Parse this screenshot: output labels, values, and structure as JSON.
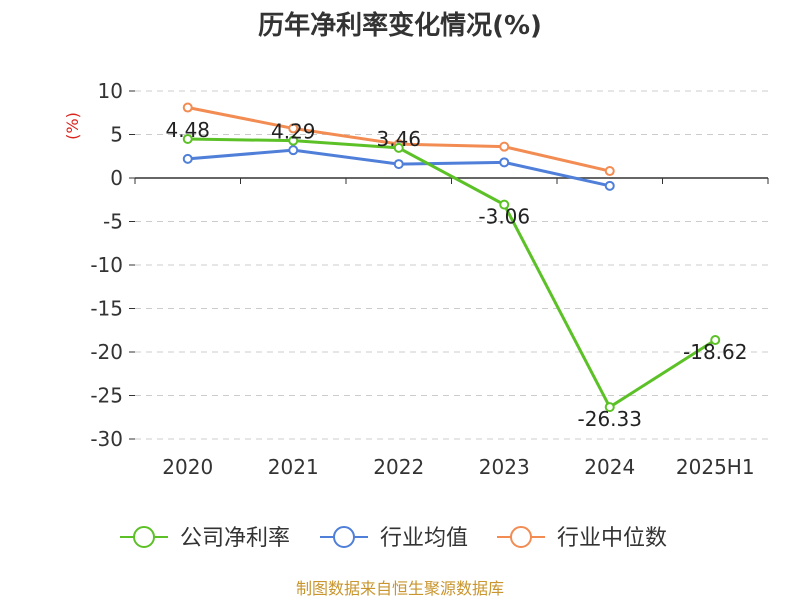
{
  "chart_data": {
    "type": "line",
    "title": "历年净利率变化情况(%)",
    "y_unit": "(%)",
    "categories": [
      "2020",
      "2021",
      "2022",
      "2023",
      "2024",
      "2025H1"
    ],
    "ylim": [
      -30,
      10
    ],
    "yticks": [
      10,
      5,
      0,
      -5,
      -10,
      -15,
      -20,
      -25,
      -30
    ],
    "grid": true,
    "legend_position": "bottom",
    "series": [
      {
        "name": "公司净利率",
        "color": "#5cc127",
        "values": [
          4.48,
          4.29,
          3.46,
          -3.06,
          -26.33,
          -18.62
        ],
        "labeled": true,
        "labels": [
          "4.48",
          "4.29",
          "3.46",
          "-3.06",
          "-26.33",
          "-18.62"
        ]
      },
      {
        "name": "行业均值",
        "color": "#4f7fd9",
        "values": [
          2.2,
          3.2,
          1.6,
          1.8,
          -0.9,
          null
        ],
        "labeled": false
      },
      {
        "name": "行业中位数",
        "color": "#f28c53",
        "values": [
          8.1,
          5.7,
          3.9,
          3.6,
          0.8,
          null
        ],
        "labeled": false
      }
    ]
  },
  "source_text": "制图数据来自恒生聚源数据库",
  "colors": {
    "axis": "#333333",
    "grid": "#cccccc",
    "unit": "#d9231c",
    "source": "#c8952e"
  }
}
